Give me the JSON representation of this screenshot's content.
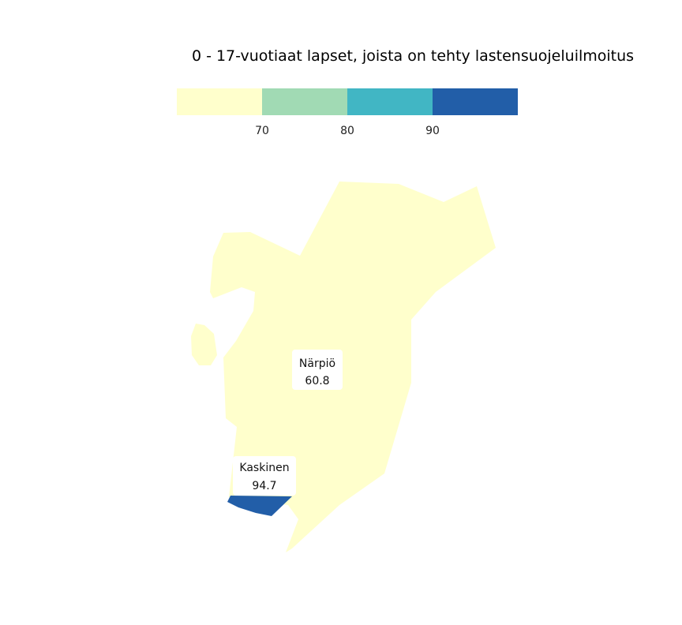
{
  "title": "0 - 17-vuotiaat lapset, joista on tehty lastensuojeluilmoitus",
  "legend": {
    "bins": [
      {
        "color": "#ffffcc"
      },
      {
        "color": "#a1dab4"
      },
      {
        "color": "#41b6c4"
      },
      {
        "color": "#225ea8"
      }
    ],
    "breaks": [
      "70",
      "80",
      "90"
    ]
  },
  "regions": [
    {
      "id": "narpio",
      "name": "Närpiö",
      "value": "60.8",
      "color": "#ffffcc"
    },
    {
      "id": "kaskinen",
      "name": "Kaskinen",
      "value": "94.7",
      "color": "#225ea8"
    }
  ]
}
